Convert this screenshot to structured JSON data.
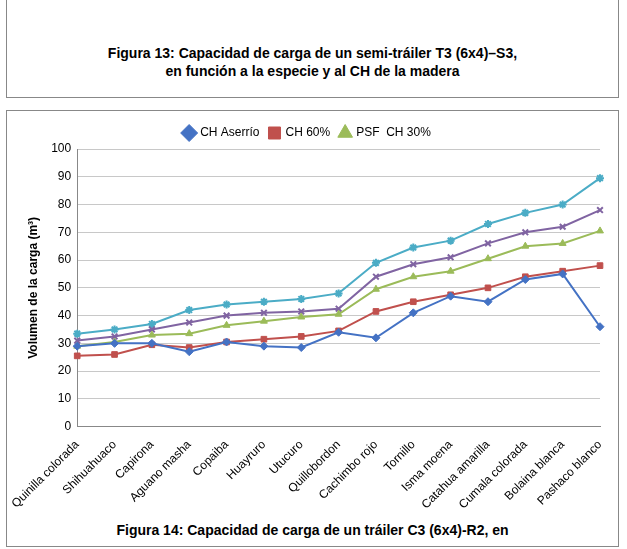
{
  "previous_figure": {
    "caption": [
      "Figura 13: Capacidad de carga de un semi-tráiler T3 (6x4)–S3,",
      "en función  a la especie y al CH de la madera"
    ]
  },
  "chart_data": {
    "type": "line",
    "caption": "Figura 14: Capacidad de carga de un tráiler C3 (6x4)-R2, en",
    "y_label": "Volumen de la carga (m³)",
    "categories": [
      "Quinilla colorada",
      "Shihuahuaco",
      "Capirona",
      "Aguano masha",
      "Copaiba",
      "Huayruro",
      "Utucuro",
      "Quillobordon",
      "Cachimbo rojo",
      "Tornillo",
      "Isma moena",
      "Catahua amarilla",
      "Cumala colorada",
      "Bolaina blanca",
      "Pashaco blanco"
    ],
    "series": [
      {
        "name": "CH Aserrío",
        "color": "#4472c4",
        "marker": "diamond",
        "values": [
          29,
          30,
          30,
          27,
          30.5,
          29,
          28.5,
          34,
          32,
          41,
          47,
          45,
          53,
          55,
          36
        ]
      },
      {
        "name": "CH 60%",
        "color": "#c0504d",
        "marker": "square",
        "values": [
          25.5,
          26,
          29.5,
          28.5,
          30.5,
          31.5,
          32.5,
          34.5,
          41.5,
          45,
          47.5,
          50,
          54,
          56,
          58
        ]
      },
      {
        "name": "PSF  CH 30%",
        "color": "#9bbb59",
        "marker": "triangle",
        "values": [
          29,
          30.5,
          33,
          33.5,
          36.5,
          38,
          39.5,
          40.5,
          49.5,
          54,
          56,
          60.5,
          65,
          66,
          70.5
        ]
      },
      {
        "color": "#8064a2",
        "marker": "x",
        "values": [
          31,
          32.5,
          35,
          37.5,
          40,
          41,
          41.5,
          42.5,
          54,
          58.5,
          61,
          66,
          70,
          72,
          78
        ]
      },
      {
        "color": "#4bacc6",
        "marker": "star",
        "values": [
          33.5,
          35,
          37,
          42,
          44,
          45,
          46,
          48,
          59,
          64.5,
          67,
          73,
          77,
          80,
          89.5
        ]
      }
    ],
    "ylim": [
      0,
      100
    ],
    "yticks": [
      0,
      10,
      20,
      30,
      40,
      50,
      60,
      70,
      80,
      90,
      100
    ],
    "grid": true,
    "legend": "top"
  }
}
